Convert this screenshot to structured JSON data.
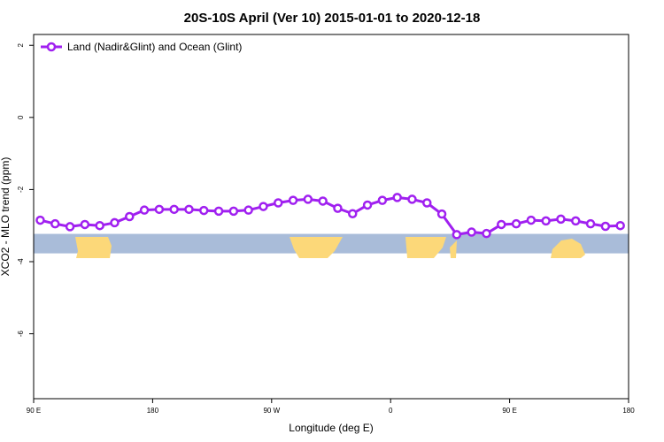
{
  "chart_data": {
    "type": "line",
    "title": "20S-10S April (Ver 10)   2015-01-01 to 2020-12-18",
    "xlabel": "Longitude (deg E)",
    "ylabel": "XCO2 - MLO trend (ppm)",
    "xlim": [
      90,
      450
    ],
    "ylim": [
      -7.8,
      2.3
    ],
    "x_ticks": [
      {
        "value": 90,
        "label": "90 E"
      },
      {
        "value": 162,
        "label": "180"
      },
      {
        "value": 234,
        "label": "90 W"
      },
      {
        "value": 306,
        "label": "0"
      },
      {
        "value": 378,
        "label": "90 E"
      },
      {
        "value": 450,
        "label": "180"
      }
    ],
    "y_ticks": [
      {
        "value": 2,
        "label": "2"
      },
      {
        "value": 0,
        "label": "0"
      },
      {
        "value": -2,
        "label": "-2"
      },
      {
        "value": -4,
        "label": "-4"
      },
      {
        "value": -6,
        "label": "-6"
      }
    ],
    "series": [
      {
        "name": "Land (Nadir&Glint) and Ocean (Glint)",
        "color": "#a020f0",
        "x": [
          94,
          103,
          112,
          121,
          130,
          139,
          148,
          157,
          166,
          175,
          184,
          193,
          202,
          211,
          220,
          229,
          238,
          247,
          256,
          265,
          274,
          283,
          292,
          301,
          310,
          319,
          328,
          337,
          346,
          355,
          364,
          373,
          382,
          391,
          400,
          409,
          418,
          427,
          436,
          445
        ],
        "y": [
          -2.85,
          -2.95,
          -3.03,
          -2.97,
          -3.0,
          -2.92,
          -2.75,
          -2.57,
          -2.55,
          -2.55,
          -2.55,
          -2.58,
          -2.6,
          -2.6,
          -2.57,
          -2.47,
          -2.37,
          -2.3,
          -2.27,
          -2.32,
          -2.52,
          -2.67,
          -2.43,
          -2.3,
          -2.22,
          -2.27,
          -2.37,
          -2.68,
          -3.25,
          -3.18,
          -3.22,
          -2.97,
          -2.95,
          -2.85,
          -2.87,
          -2.82,
          -2.87,
          -2.95,
          -3.02,
          -3.0
        ]
      }
    ],
    "legend_position": "top-left",
    "grid": false,
    "map_strip": {
      "ocean_color": "#a9bcd9",
      "land_color": "#fcd879",
      "y_top": -3.23,
      "y_bottom": -3.77
    }
  }
}
